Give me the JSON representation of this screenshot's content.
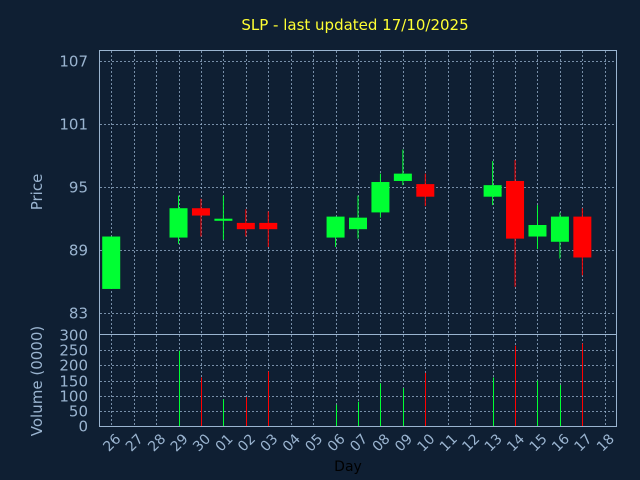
{
  "chart_data": [
    {
      "type": "candlestick",
      "title": "SLP - last updated 17/10/2025",
      "ylabel": "Price",
      "ylim": [
        81,
        108
      ],
      "yticks": [
        83,
        89,
        95,
        101,
        107
      ],
      "grid": true,
      "categories": [
        "26",
        "27",
        "28",
        "29",
        "30",
        "01",
        "02",
        "03",
        "04",
        "05",
        "06",
        "07",
        "08",
        "09",
        "10",
        "11",
        "12",
        "13",
        "14",
        "15",
        "16",
        "17",
        "18"
      ],
      "candles": [
        {
          "day": "26",
          "open": 85.3,
          "close": 90.3,
          "high": 90.3,
          "low": 85.3
        },
        {
          "day": "29",
          "open": 90.2,
          "close": 93.0,
          "high": 94.2,
          "low": 89.6
        },
        {
          "day": "30",
          "open": 93.0,
          "close": 92.3,
          "high": 93.9,
          "low": 90.3
        },
        {
          "day": "01",
          "open": 91.8,
          "close": 92.0,
          "high": 94.2,
          "low": 90.0
        },
        {
          "day": "02",
          "open": 91.6,
          "close": 91.0,
          "high": 92.9,
          "low": 90.3
        },
        {
          "day": "03",
          "open": 91.6,
          "close": 91.0,
          "high": 92.7,
          "low": 89.3
        },
        {
          "day": "06",
          "open": 90.2,
          "close": 92.2,
          "high": 92.2,
          "low": 89.3
        },
        {
          "day": "07",
          "open": 91.0,
          "close": 92.1,
          "high": 94.2,
          "low": 90.1
        },
        {
          "day": "08",
          "open": 92.6,
          "close": 95.5,
          "high": 96.3,
          "low": 92.1
        },
        {
          "day": "09",
          "open": 95.6,
          "close": 96.3,
          "high": 98.6,
          "low": 95.2
        },
        {
          "day": "10",
          "open": 95.3,
          "close": 94.1,
          "high": 96.3,
          "low": 93.2
        },
        {
          "day": "13",
          "open": 94.1,
          "close": 95.2,
          "high": 97.5,
          "low": 93.3
        },
        {
          "day": "14",
          "open": 95.6,
          "close": 90.1,
          "high": 97.6,
          "low": 85.5
        },
        {
          "day": "15",
          "open": 90.3,
          "close": 91.4,
          "high": 93.3,
          "low": 89.1
        },
        {
          "day": "16",
          "open": 89.8,
          "close": 92.2,
          "high": 92.6,
          "low": 88.2
        },
        {
          "day": "17",
          "open": 92.2,
          "close": 88.3,
          "high": 93.0,
          "low": 86.6
        }
      ],
      "up_color": "#00ff33",
      "down_color": "#ff0000"
    },
    {
      "type": "bar",
      "ylabel": "Volume (0000)",
      "xlabel": "Day",
      "ylim": [
        0,
        300
      ],
      "yticks": [
        0,
        50,
        100,
        150,
        200,
        250,
        300
      ],
      "categories": [
        "26",
        "27",
        "28",
        "29",
        "30",
        "01",
        "02",
        "03",
        "04",
        "05",
        "06",
        "07",
        "08",
        "09",
        "10",
        "11",
        "12",
        "13",
        "14",
        "15",
        "16",
        "17",
        "18"
      ],
      "volumes": [
        {
          "day": "26",
          "value": 0,
          "dir": "up"
        },
        {
          "day": "29",
          "value": 248,
          "dir": "up"
        },
        {
          "day": "30",
          "value": 160,
          "dir": "down"
        },
        {
          "day": "01",
          "value": 88,
          "dir": "up"
        },
        {
          "day": "02",
          "value": 95,
          "dir": "down"
        },
        {
          "day": "03",
          "value": 180,
          "dir": "down"
        },
        {
          "day": "06",
          "value": 70,
          "dir": "up"
        },
        {
          "day": "07",
          "value": 80,
          "dir": "up"
        },
        {
          "day": "08",
          "value": 140,
          "dir": "up"
        },
        {
          "day": "09",
          "value": 125,
          "dir": "up"
        },
        {
          "day": "10",
          "value": 175,
          "dir": "down"
        },
        {
          "day": "13",
          "value": 160,
          "dir": "up"
        },
        {
          "day": "14",
          "value": 265,
          "dir": "down"
        },
        {
          "day": "15",
          "value": 150,
          "dir": "up"
        },
        {
          "day": "16",
          "value": 135,
          "dir": "up"
        },
        {
          "day": "17",
          "value": 272,
          "dir": "down"
        }
      ]
    }
  ]
}
